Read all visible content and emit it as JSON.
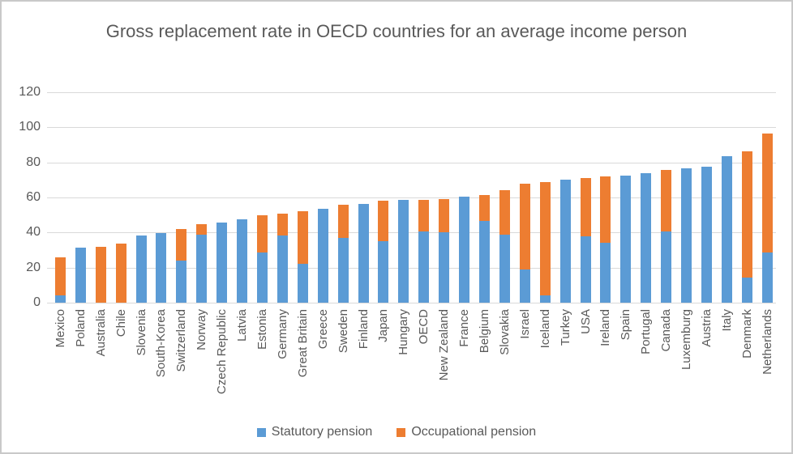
{
  "chart_data": {
    "type": "bar",
    "stacked": true,
    "title": "Gross replacement rate in OECD countries for an average income person",
    "categories": [
      "Mexico",
      "Poland",
      "Australia",
      "Chile",
      "Slovenia",
      "South-Korea",
      "Switzerland",
      "Norway",
      "Czech Republic",
      "Latvia",
      "Estonia",
      "Germany",
      "Great Britain",
      "Greece",
      "Sweden",
      "Finland",
      "Japan",
      "Hungary",
      "OECD",
      "New Zealand",
      "France",
      "Belgium",
      "Slovakia",
      "Israel",
      "Iceland",
      "Turkey",
      "USA",
      "Ireland",
      "Spain",
      "Portugal",
      "Canada",
      "Luxemburg",
      "Austria",
      "Italy",
      "Denmark",
      "Netherlands"
    ],
    "series": [
      {
        "name": "Statutory pension",
        "color": "#5B9BD5",
        "values": [
          4,
          31.5,
          0,
          0,
          38.5,
          39.5,
          24,
          39,
          45.5,
          47.5,
          28.5,
          38.5,
          22,
          53.5,
          37,
          56.5,
          35,
          58.5,
          40.5,
          40,
          60.5,
          46.5,
          39,
          19,
          4,
          70,
          38,
          34,
          72.5,
          74,
          40.5,
          76.5,
          77.5,
          83.5,
          14.5,
          28.5
        ]
      },
      {
        "name": "Occupational pension",
        "color": "#ED7D31",
        "values": [
          22,
          0,
          32,
          33.5,
          0,
          0,
          18,
          6,
          0,
          0,
          21.5,
          12.5,
          30,
          0,
          19,
          0,
          23,
          0,
          18,
          19,
          0,
          15,
          25,
          49,
          65,
          0,
          33,
          38,
          0,
          0,
          35,
          0,
          0,
          0,
          72,
          68
        ]
      }
    ],
    "xlabel": "",
    "ylabel": "",
    "ylim": [
      0,
      120
    ],
    "yticks": [
      0,
      20,
      40,
      60,
      80,
      100,
      120
    ],
    "grid": true,
    "legend_position": "bottom"
  },
  "colors": {
    "statutory": "#5B9BD5",
    "occupational": "#ED7D31",
    "gridline": "#D9D9D9",
    "text": "#595959",
    "border": "#C9C9C9",
    "background": "#FFFFFF"
  }
}
